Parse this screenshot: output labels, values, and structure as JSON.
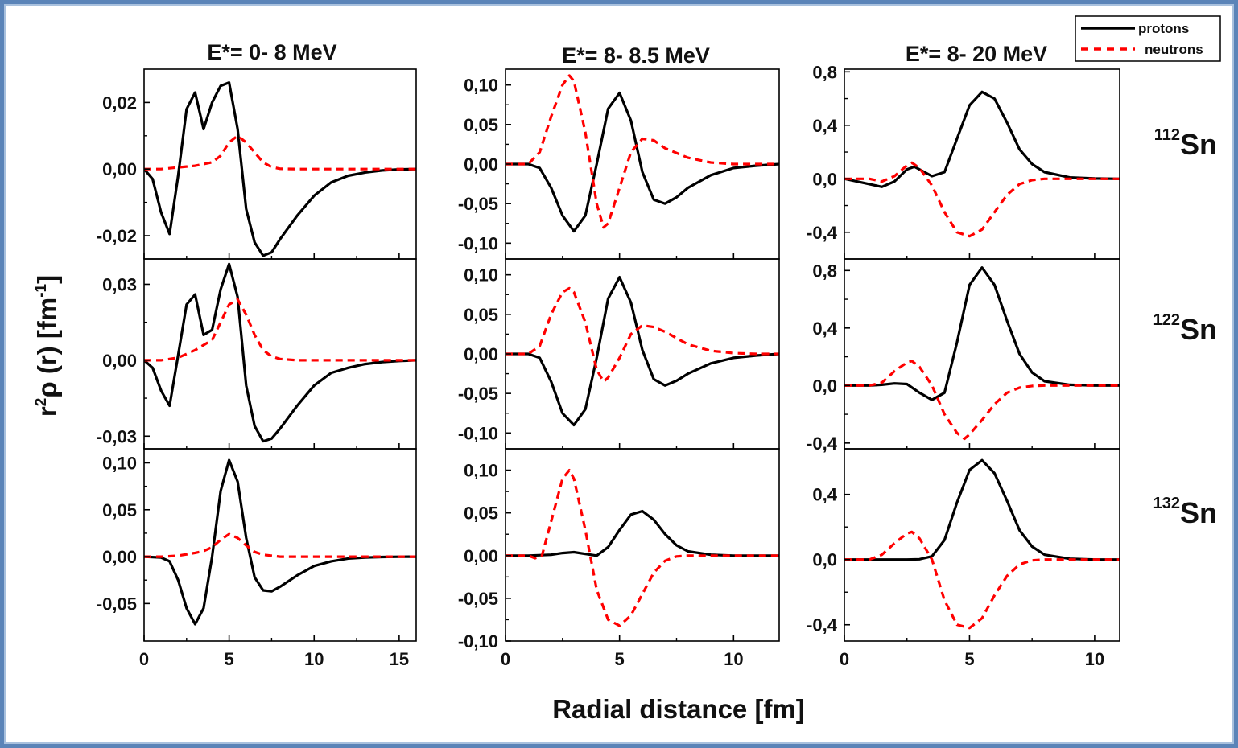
{
  "figure": {
    "xlabel": "Radial distance [fm]",
    "ylabel_parts": [
      "r",
      "2",
      "ρ (r)  [fm",
      "-1",
      "]"
    ],
    "column_titles": [
      "E*= 0- 8 MeV",
      "E*= 8- 8.5 MeV",
      "E*= 8- 20 MeV"
    ],
    "row_labels": [
      {
        "mass": "112",
        "element": "Sn"
      },
      {
        "mass": "122",
        "element": "Sn"
      },
      {
        "mass": "132",
        "element": "Sn"
      }
    ],
    "legend": {
      "placement": "top-right",
      "entries": [
        {
          "label": "protons",
          "color": "#000000",
          "style": "solid"
        },
        {
          "label": "neutrons",
          "color": "#ff0000",
          "style": "dashed"
        }
      ]
    }
  },
  "chart_data": [
    {
      "type": "line",
      "row": 0,
      "col": 0,
      "xlim": [
        0,
        16
      ],
      "ylim": [
        -0.027,
        0.03
      ],
      "xticks": [
        0,
        5,
        10,
        15
      ],
      "xtick_labels": [
        "0",
        "5",
        "10",
        "15"
      ],
      "yticks": [
        -0.02,
        0,
        0.02
      ],
      "ytick_labels": [
        "-0,02",
        "0,00",
        "0,02"
      ],
      "series": [
        {
          "name": "protons",
          "x": [
            0,
            0.5,
            1,
            1.5,
            2,
            2.5,
            3,
            3.5,
            4,
            4.5,
            5,
            5.5,
            6,
            6.5,
            7,
            7.5,
            8,
            9,
            10,
            11,
            12,
            13,
            14,
            15,
            16
          ],
          "y": [
            0,
            -0.003,
            -0.013,
            -0.0195,
            -0.002,
            0.018,
            0.023,
            0.012,
            0.02,
            0.025,
            0.026,
            0.012,
            -0.012,
            -0.022,
            -0.026,
            -0.025,
            -0.021,
            -0.014,
            -0.008,
            -0.004,
            -0.002,
            -0.001,
            -0.0004,
            -0.0001,
            0
          ]
        },
        {
          "name": "neutrons",
          "x": [
            0,
            1,
            2,
            3,
            4,
            4.5,
            5,
            5.5,
            6,
            6.5,
            7,
            7.5,
            8,
            9,
            10,
            12,
            14,
            16
          ],
          "y": [
            0,
            0,
            0.0005,
            0.001,
            0.002,
            0.004,
            0.008,
            0.01,
            0.008,
            0.005,
            0.002,
            0.0006,
            0.0001,
            0,
            0,
            0,
            0,
            0
          ]
        }
      ]
    },
    {
      "type": "line",
      "row": 0,
      "col": 1,
      "xlim": [
        0,
        12
      ],
      "ylim": [
        -0.12,
        0.12
      ],
      "xticks": [
        0,
        5,
        10
      ],
      "xtick_labels": [
        "0",
        "5",
        "10"
      ],
      "yticks": [
        -0.1,
        -0.05,
        0,
        0.05,
        0.1
      ],
      "ytick_labels": [
        "-0,10",
        "-0,05",
        "0,00",
        "0,05",
        "0,10"
      ],
      "series": [
        {
          "name": "protons",
          "x": [
            0,
            1,
            1.5,
            2,
            2.5,
            3,
            3.5,
            4,
            4.5,
            5,
            5.5,
            6,
            6.5,
            7,
            7.5,
            8,
            9,
            10,
            11,
            12
          ],
          "y": [
            0,
            0,
            -0.005,
            -0.03,
            -0.065,
            -0.085,
            -0.065,
            0,
            0.07,
            0.09,
            0.055,
            -0.01,
            -0.045,
            -0.05,
            -0.042,
            -0.03,
            -0.014,
            -0.005,
            -0.002,
            0
          ]
        },
        {
          "name": "neutrons",
          "x": [
            0,
            1,
            1.5,
            2,
            2.5,
            2.8,
            3,
            3.5,
            4,
            4.3,
            4.5,
            5,
            5.5,
            6,
            6.5,
            7,
            8,
            9,
            10,
            11,
            12
          ],
          "y": [
            0,
            0,
            0.015,
            0.06,
            0.1,
            0.112,
            0.105,
            0.04,
            -0.05,
            -0.08,
            -0.075,
            -0.03,
            0.015,
            0.032,
            0.03,
            0.02,
            0.008,
            0.002,
            0,
            0,
            0
          ]
        }
      ]
    },
    {
      "type": "line",
      "row": 0,
      "col": 2,
      "xlim": [
        0,
        11
      ],
      "ylim": [
        -0.6,
        0.82
      ],
      "xticks": [
        0,
        5,
        10
      ],
      "xtick_labels": [
        "0",
        "5",
        "10"
      ],
      "yticks": [
        -0.4,
        0,
        0.4,
        0.8
      ],
      "ytick_labels": [
        "-0,4",
        "0,0",
        "0,4",
        "0,8"
      ],
      "series": [
        {
          "name": "protons",
          "x": [
            0,
            0.5,
            1,
            1.5,
            2,
            2.5,
            2.8,
            3,
            3.5,
            4,
            4.5,
            5,
            5.5,
            6,
            6.5,
            7,
            7.5,
            8,
            9,
            10,
            11
          ],
          "y": [
            0,
            -0.02,
            -0.04,
            -0.06,
            -0.02,
            0.07,
            0.09,
            0.07,
            0.02,
            0.05,
            0.3,
            0.55,
            0.65,
            0.6,
            0.42,
            0.22,
            0.11,
            0.05,
            0.01,
            0.002,
            0
          ]
        },
        {
          "name": "neutrons",
          "x": [
            0,
            1,
            1.5,
            2,
            2.5,
            2.7,
            3,
            3.5,
            4,
            4.5,
            5,
            5.5,
            6,
            6.5,
            7,
            7.5,
            8,
            9,
            10,
            11
          ],
          "y": [
            0,
            0,
            -0.02,
            0.02,
            0.1,
            0.12,
            0.08,
            -0.05,
            -0.25,
            -0.4,
            -0.43,
            -0.38,
            -0.25,
            -0.12,
            -0.04,
            -0.01,
            0,
            0,
            0,
            0
          ]
        }
      ]
    },
    {
      "type": "line",
      "row": 1,
      "col": 0,
      "xlim": [
        0,
        16
      ],
      "ylim": [
        -0.035,
        0.04
      ],
      "xticks": [
        0,
        5,
        10,
        15
      ],
      "xtick_labels": [
        "0",
        "5",
        "10",
        "15"
      ],
      "yticks": [
        -0.03,
        0,
        0.03
      ],
      "ytick_labels": [
        "-0,03",
        "0,00",
        "0,03"
      ],
      "series": [
        {
          "name": "protons",
          "x": [
            0,
            0.5,
            1,
            1.5,
            2,
            2.5,
            3,
            3.5,
            4,
            4.5,
            5,
            5.5,
            6,
            6.5,
            7,
            7.5,
            8,
            9,
            10,
            11,
            12,
            13,
            14,
            15,
            16
          ],
          "y": [
            0,
            -0.003,
            -0.012,
            -0.018,
            0.002,
            0.022,
            0.026,
            0.01,
            0.012,
            0.028,
            0.038,
            0.025,
            -0.01,
            -0.026,
            -0.032,
            -0.031,
            -0.027,
            -0.018,
            -0.01,
            -0.005,
            -0.003,
            -0.0015,
            -0.0007,
            -0.0003,
            0
          ]
        },
        {
          "name": "neutrons",
          "x": [
            0,
            1,
            2,
            3,
            4,
            4.5,
            5,
            5.5,
            6,
            6.5,
            7,
            7.5,
            8,
            9,
            10,
            12,
            14,
            16
          ],
          "y": [
            0,
            0,
            0.001,
            0.004,
            0.008,
            0.015,
            0.022,
            0.024,
            0.018,
            0.01,
            0.004,
            0.0015,
            0.0005,
            0,
            0,
            0,
            0,
            0
          ]
        }
      ]
    },
    {
      "type": "line",
      "row": 1,
      "col": 1,
      "xlim": [
        0,
        12
      ],
      "ylim": [
        -0.12,
        0.12
      ],
      "xticks": [
        0,
        5,
        10
      ],
      "xtick_labels": [
        "0",
        "5",
        "10"
      ],
      "yticks": [
        -0.1,
        -0.05,
        0,
        0.05,
        0.1
      ],
      "ytick_labels": [
        "-0,10",
        "-0,05",
        "0,00",
        "0,05",
        "0,10"
      ],
      "series": [
        {
          "name": "protons",
          "x": [
            0,
            1,
            1.5,
            2,
            2.5,
            3,
            3.5,
            4,
            4.5,
            5,
            5.5,
            6,
            6.5,
            7,
            7.5,
            8,
            9,
            10,
            11,
            12
          ],
          "y": [
            0,
            0,
            -0.005,
            -0.035,
            -0.075,
            -0.09,
            -0.07,
            -0.005,
            0.07,
            0.097,
            0.065,
            0.005,
            -0.032,
            -0.04,
            -0.034,
            -0.025,
            -0.012,
            -0.005,
            -0.002,
            0
          ]
        },
        {
          "name": "neutrons",
          "x": [
            0,
            1,
            1.5,
            2,
            2.5,
            2.8,
            3,
            3.5,
            4,
            4.3,
            4.5,
            5,
            5.5,
            6,
            6.5,
            7,
            8,
            9,
            10,
            11,
            12
          ],
          "y": [
            0,
            0,
            0.01,
            0.05,
            0.078,
            0.083,
            0.078,
            0.04,
            -0.02,
            -0.035,
            -0.03,
            -0.005,
            0.025,
            0.036,
            0.034,
            0.028,
            0.012,
            0.004,
            0.001,
            0,
            0
          ]
        }
      ]
    },
    {
      "type": "line",
      "row": 1,
      "col": 2,
      "xlim": [
        0,
        11
      ],
      "ylim": [
        -0.44,
        0.88
      ],
      "xticks": [
        0,
        5,
        10
      ],
      "xtick_labels": [
        "0",
        "5",
        "10"
      ],
      "yticks": [
        -0.4,
        0,
        0.4,
        0.8
      ],
      "ytick_labels": [
        "-0,4",
        "0,0",
        "0,4",
        "0,8"
      ],
      "series": [
        {
          "name": "protons",
          "x": [
            0,
            1,
            1.5,
            2,
            2.5,
            3,
            3.5,
            4,
            4.5,
            5,
            5.5,
            6,
            6.5,
            7,
            7.5,
            8,
            9,
            10,
            11
          ],
          "y": [
            0,
            0,
            0.005,
            0.015,
            0.01,
            -0.05,
            -0.1,
            -0.05,
            0.3,
            0.7,
            0.82,
            0.7,
            0.45,
            0.22,
            0.09,
            0.03,
            0.005,
            0,
            0
          ]
        },
        {
          "name": "neutrons",
          "x": [
            0,
            1,
            1.5,
            2,
            2.5,
            2.7,
            3,
            3.5,
            4,
            4.5,
            4.8,
            5,
            5.5,
            6,
            6.5,
            7,
            7.5,
            8,
            9,
            10,
            11
          ],
          "y": [
            0,
            0,
            0.02,
            0.1,
            0.16,
            0.17,
            0.13,
            0,
            -0.2,
            -0.33,
            -0.37,
            -0.34,
            -0.24,
            -0.13,
            -0.05,
            -0.015,
            -0.003,
            0,
            0,
            0,
            0
          ]
        }
      ]
    },
    {
      "type": "line",
      "row": 2,
      "col": 0,
      "xlim": [
        0,
        16
      ],
      "ylim": [
        -0.09,
        0.115
      ],
      "xticks": [
        0,
        5,
        10,
        15
      ],
      "xtick_labels": [
        "0",
        "5",
        "10",
        "15"
      ],
      "yticks": [
        -0.05,
        0,
        0.05,
        0.1
      ],
      "ytick_labels": [
        "-0,05",
        "0,00",
        "0,05",
        "0,10"
      ],
      "series": [
        {
          "name": "protons",
          "x": [
            0,
            1,
            1.5,
            2,
            2.5,
            3,
            3.5,
            4,
            4.5,
            5,
            5.5,
            6,
            6.5,
            7,
            7.5,
            8,
            9,
            10,
            11,
            12,
            13,
            14,
            15,
            16
          ],
          "y": [
            0,
            -0.001,
            -0.005,
            -0.025,
            -0.055,
            -0.072,
            -0.055,
            0,
            0.07,
            0.103,
            0.08,
            0.02,
            -0.022,
            -0.036,
            -0.037,
            -0.032,
            -0.02,
            -0.01,
            -0.005,
            -0.002,
            -0.001,
            -0.0004,
            -0.0001,
            0
          ]
        },
        {
          "name": "neutrons",
          "x": [
            0,
            1,
            2,
            3,
            3.5,
            4,
            4.5,
            5,
            5.5,
            6,
            6.5,
            7,
            8,
            9,
            10,
            12,
            14,
            16
          ],
          "y": [
            0,
            0,
            0.001,
            0.004,
            0.006,
            0.01,
            0.018,
            0.024,
            0.02,
            0.012,
            0.005,
            0.002,
            0,
            0,
            0,
            0,
            0,
            0
          ]
        }
      ]
    },
    {
      "type": "line",
      "row": 2,
      "col": 1,
      "xlim": [
        0,
        12
      ],
      "ylim": [
        -0.1,
        0.125
      ],
      "xticks": [
        0,
        5,
        10
      ],
      "xtick_labels": [
        "0",
        "5",
        "10"
      ],
      "yticks": [
        -0.1,
        -0.05,
        0,
        0.05,
        0.1
      ],
      "ytick_labels": [
        "-0,10",
        "-0,05",
        "0,00",
        "0,05",
        "0,10"
      ],
      "series": [
        {
          "name": "protons",
          "x": [
            0,
            1,
            2,
            2.5,
            3,
            3.5,
            4,
            4.5,
            5,
            5.5,
            6,
            6.5,
            7,
            7.5,
            8,
            9,
            10,
            11,
            12
          ],
          "y": [
            0,
            0,
            0.001,
            0.003,
            0.004,
            0.002,
            0,
            0.01,
            0.03,
            0.048,
            0.052,
            0.042,
            0.025,
            0.012,
            0.005,
            0.001,
            0,
            0,
            0
          ]
        },
        {
          "name": "neutrons",
          "x": [
            0,
            1,
            1.3,
            1.6,
            2,
            2.5,
            2.8,
            3,
            3.5,
            4,
            4.5,
            5,
            5.5,
            6,
            6.5,
            7,
            7.5,
            8,
            9,
            10,
            12
          ],
          "y": [
            0,
            0,
            -0.003,
            0,
            0.04,
            0.09,
            0.1,
            0.09,
            0.03,
            -0.04,
            -0.075,
            -0.082,
            -0.07,
            -0.045,
            -0.02,
            -0.006,
            -0.001,
            0,
            0,
            0,
            0
          ]
        }
      ]
    },
    {
      "type": "line",
      "row": 2,
      "col": 2,
      "xlim": [
        0,
        11
      ],
      "ylim": [
        -0.5,
        0.68
      ],
      "xticks": [
        0,
        5,
        10
      ],
      "xtick_labels": [
        "0",
        "5",
        "10"
      ],
      "yticks": [
        -0.4,
        0,
        0.4
      ],
      "ytick_labels": [
        "-0,4",
        "0,0",
        "0,4"
      ],
      "series": [
        {
          "name": "protons",
          "x": [
            0,
            1,
            2,
            2.5,
            3,
            3.5,
            4,
            4.5,
            5,
            5.5,
            6,
            6.5,
            7,
            7.5,
            8,
            9,
            10,
            11
          ],
          "y": [
            0,
            0,
            0,
            0,
            0.002,
            0.02,
            0.12,
            0.35,
            0.55,
            0.61,
            0.53,
            0.36,
            0.18,
            0.08,
            0.03,
            0.005,
            0,
            0
          ]
        },
        {
          "name": "neutrons",
          "x": [
            0,
            1,
            1.5,
            2,
            2.5,
            2.7,
            3,
            3.5,
            4,
            4.5,
            5,
            5.5,
            6,
            6.5,
            7,
            7.5,
            8,
            9,
            10,
            11
          ],
          "y": [
            0,
            0,
            0.03,
            0.1,
            0.16,
            0.17,
            0.13,
            0,
            -0.25,
            -0.4,
            -0.42,
            -0.36,
            -0.22,
            -0.1,
            -0.03,
            -0.005,
            0,
            0,
            0,
            0
          ]
        }
      ]
    }
  ]
}
